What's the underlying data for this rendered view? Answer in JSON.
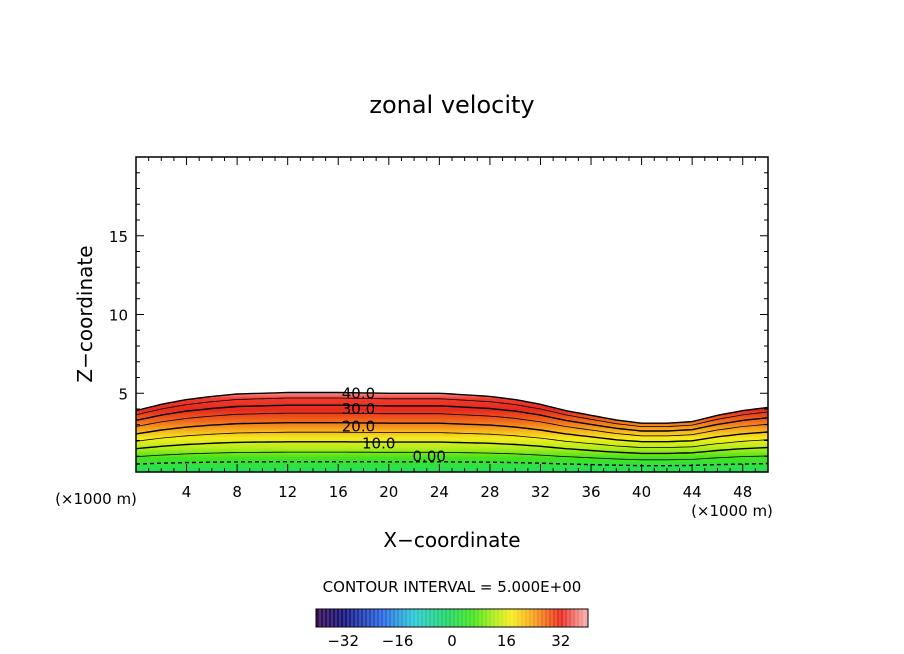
{
  "chart_data": {
    "type": "contour",
    "title": "zonal velocity",
    "xlabel": "X−coordinate",
    "ylabel": "Z−coordinate",
    "x_unit_left": "(×1000 m)",
    "x_unit_right": "(×1000 m)",
    "xlim": [
      0,
      50
    ],
    "ylim": [
      0,
      20
    ],
    "xticks": [
      4,
      8,
      12,
      16,
      20,
      24,
      28,
      32,
      36,
      40,
      44,
      48
    ],
    "yticks": [
      5,
      10,
      15
    ],
    "grid": false,
    "field_top": [
      [
        0,
        3.9
      ],
      [
        2,
        4.3
      ],
      [
        4,
        4.6
      ],
      [
        6,
        4.8
      ],
      [
        8,
        4.95
      ],
      [
        10,
        5.0
      ],
      [
        12,
        5.05
      ],
      [
        16,
        5.05
      ],
      [
        20,
        5.0
      ],
      [
        24,
        5.0
      ],
      [
        28,
        4.8
      ],
      [
        30,
        4.6
      ],
      [
        32,
        4.3
      ],
      [
        34,
        3.9
      ],
      [
        36,
        3.6
      ],
      [
        38,
        3.3
      ],
      [
        40,
        3.1
      ],
      [
        42,
        3.1
      ],
      [
        44,
        3.2
      ],
      [
        46,
        3.6
      ],
      [
        48,
        3.9
      ],
      [
        50,
        4.1
      ]
    ],
    "contour_labels": [
      {
        "text": "40.0",
        "x": 17.6,
        "y": 5.0
      },
      {
        "text": "30.0",
        "x": 17.6,
        "y": 4.0
      },
      {
        "text": "20.0",
        "x": 17.6,
        "y": 2.9
      },
      {
        "text": "10.0",
        "x": 19.2,
        "y": 1.8
      },
      {
        "text": "0.00",
        "x": 23.2,
        "y": 1.0
      }
    ],
    "contour_interval_text": "CONTOUR INTERVAL = 5.000E+00",
    "colorbar": {
      "min": -40,
      "max": 40,
      "ticks": [
        -32,
        -16,
        0,
        16,
        32
      ],
      "tick_labels": [
        "−32",
        "−16",
        "0",
        "16",
        "32"
      ]
    }
  }
}
